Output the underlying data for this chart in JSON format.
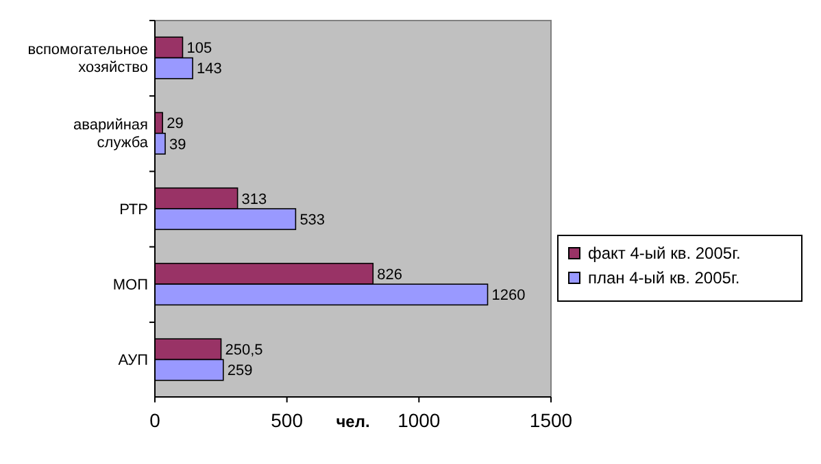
{
  "chart_data": {
    "type": "bar",
    "orientation": "horizontal",
    "xlabel": "чел.",
    "categories": [
      "вспомогательное хозяйство",
      "аварийная служба",
      "РТР",
      "МОП",
      "АУП"
    ],
    "series": [
      {
        "name": "факт 4-ый кв. 2005г.",
        "color": "#993366",
        "values": [
          105,
          29,
          313,
          826,
          250.5
        ],
        "value_labels": [
          "105",
          "29",
          "313",
          "826",
          "250,5"
        ]
      },
      {
        "name": "план 4-ый кв. 2005г.",
        "color": "#9999ff",
        "values": [
          143,
          39,
          533,
          1260,
          259
        ],
        "value_labels": [
          "143",
          "39",
          "533",
          "1260",
          "259"
        ]
      }
    ],
    "xlim": [
      0,
      1500
    ],
    "xticks": [
      0,
      500,
      1000,
      1500
    ],
    "grid": false,
    "legend": "right"
  }
}
